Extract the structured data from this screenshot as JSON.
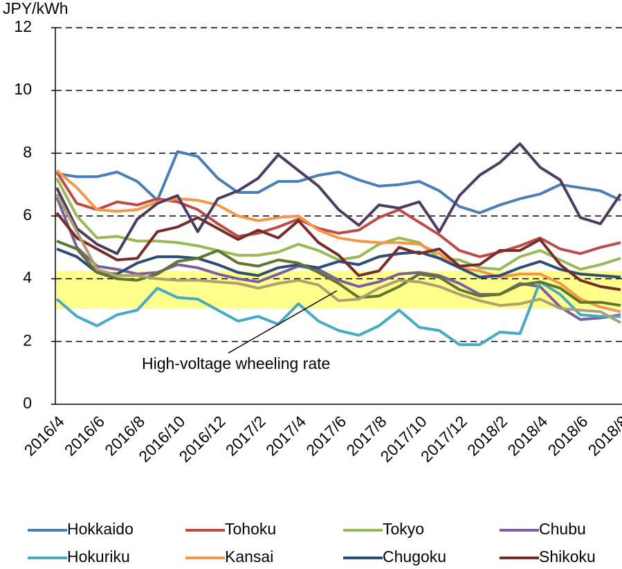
{
  "chart_data": {
    "type": "line",
    "y_label": "JPY/kWh",
    "annotation": "High-voltage wheeling rate",
    "band": [
      3.05,
      4.25
    ],
    "categories": [
      "2016/4",
      null,
      "2016/6",
      null,
      "2016/8",
      null,
      "2016/10",
      null,
      "2016/12",
      null,
      "2017/2",
      null,
      "2017/4",
      null,
      "2017/6",
      null,
      "2017/8",
      null,
      "2017/10",
      null,
      "2017/12",
      null,
      "2018/2",
      null,
      "2018/4",
      null,
      "2018/6",
      null,
      "2018/8"
    ],
    "ylim": [
      0,
      12
    ],
    "yticks": [
      0,
      2,
      4,
      6,
      8,
      10,
      12
    ],
    "grid": true,
    "series": [
      {
        "name": "Hokkaido",
        "color": "#4a7ebb",
        "values": [
          7.35,
          7.25,
          7.25,
          7.4,
          7.1,
          6.5,
          8.05,
          7.9,
          7.2,
          6.75,
          6.75,
          7.1,
          7.1,
          7.3,
          7.4,
          7.15,
          6.95,
          7.0,
          7.1,
          6.8,
          6.3,
          6.1,
          6.35,
          6.55,
          6.7,
          7.0,
          6.9,
          6.8,
          6.5
        ]
      },
      {
        "name": "Tohoku",
        "color": "#be4b48",
        "values": [
          7.4,
          6.4,
          6.2,
          6.45,
          6.35,
          6.55,
          6.45,
          6.2,
          5.75,
          5.35,
          5.45,
          5.65,
          5.9,
          5.6,
          5.45,
          5.55,
          5.95,
          6.2,
          5.8,
          5.4,
          4.9,
          4.7,
          4.85,
          5.05,
          5.3,
          4.95,
          4.8,
          5.0,
          5.15
        ]
      },
      {
        "name": "Tokyo",
        "color": "#98b954",
        "values": [
          7.2,
          6.0,
          5.3,
          5.35,
          5.2,
          5.2,
          5.15,
          5.05,
          4.9,
          4.75,
          4.75,
          4.85,
          5.1,
          4.9,
          4.6,
          4.7,
          5.1,
          5.3,
          5.15,
          4.65,
          4.6,
          4.35,
          4.3,
          4.7,
          4.9,
          4.6,
          4.3,
          4.45,
          4.65
        ]
      },
      {
        "name": "Chubu",
        "color": "#7d5fa0",
        "values": [
          6.6,
          5.0,
          4.4,
          4.3,
          4.15,
          4.2,
          4.45,
          4.35,
          4.15,
          4.0,
          3.9,
          4.15,
          4.4,
          4.3,
          3.95,
          3.75,
          3.9,
          4.15,
          4.2,
          4.1,
          3.85,
          3.5,
          3.5,
          3.85,
          3.75,
          3.1,
          2.7,
          2.75,
          2.85
        ]
      },
      {
        "name": "Hokuriku",
        "color": "#46aac5",
        "values": [
          3.35,
          2.8,
          2.5,
          2.85,
          3.0,
          3.7,
          3.4,
          3.35,
          3.0,
          2.65,
          2.8,
          2.55,
          3.2,
          2.65,
          2.35,
          2.2,
          2.5,
          3.0,
          2.45,
          2.35,
          1.9,
          1.9,
          2.3,
          2.25,
          3.9,
          3.5,
          2.85,
          2.8,
          2.8
        ]
      },
      {
        "name": "Kansai",
        "color": "#f79646",
        "values": [
          7.45,
          6.9,
          6.2,
          6.15,
          6.2,
          6.45,
          6.55,
          6.5,
          6.35,
          6.0,
          5.85,
          5.95,
          6.0,
          5.55,
          5.3,
          5.2,
          5.15,
          5.15,
          5.1,
          4.8,
          4.35,
          4.25,
          4.05,
          4.15,
          4.15,
          3.85,
          3.35,
          3.1,
          2.95
        ]
      },
      {
        "name": "Chugoku",
        "color": "#2c4d75",
        "values": [
          4.95,
          4.7,
          4.2,
          4.15,
          4.5,
          4.7,
          4.7,
          4.65,
          4.45,
          4.2,
          4.1,
          4.35,
          4.45,
          4.35,
          4.55,
          4.45,
          4.7,
          4.8,
          4.85,
          4.65,
          4.35,
          4.05,
          4.1,
          4.35,
          4.55,
          4.3,
          4.15,
          4.1,
          4.05
        ]
      },
      {
        "name": "Shikoku",
        "color": "#772c2a",
        "values": [
          6.1,
          5.3,
          4.95,
          4.6,
          4.65,
          5.5,
          5.65,
          5.95,
          5.6,
          5.25,
          5.55,
          5.3,
          5.85,
          5.15,
          4.75,
          4.1,
          4.25,
          5.0,
          4.8,
          4.95,
          4.4,
          4.45,
          4.9,
          4.9,
          5.25,
          4.45,
          3.95,
          3.75,
          3.65
        ]
      },
      {
        "color": "#4d3b62",
        "values": [
          6.9,
          5.6,
          5.1,
          4.8,
          5.9,
          6.4,
          6.65,
          5.5,
          6.55,
          6.8,
          7.2,
          7.95,
          7.45,
          6.95,
          6.2,
          5.7,
          6.35,
          6.25,
          6.45,
          5.5,
          6.65,
          7.3,
          7.7,
          8.3,
          7.55,
          7.15,
          5.95,
          5.75,
          6.7
        ]
      },
      {
        "color": "#5f7530",
        "values": [
          5.2,
          4.95,
          4.2,
          4.0,
          3.95,
          4.15,
          4.55,
          4.65,
          4.9,
          4.5,
          4.4,
          4.6,
          4.5,
          4.2,
          3.85,
          3.4,
          3.45,
          3.75,
          4.15,
          4.05,
          3.65,
          3.45,
          3.5,
          3.8,
          3.9,
          3.7,
          3.25,
          3.25,
          3.15
        ]
      },
      {
        "color": "#b0a070",
        "values": [
          6.7,
          5.5,
          4.3,
          4.1,
          4.1,
          4.0,
          3.95,
          3.95,
          3.9,
          3.85,
          3.7,
          3.85,
          3.95,
          3.8,
          3.3,
          3.35,
          3.7,
          3.95,
          3.9,
          3.75,
          3.5,
          3.3,
          3.15,
          3.2,
          3.35,
          3.05,
          3.0,
          2.95,
          2.6
        ]
      }
    ]
  }
}
